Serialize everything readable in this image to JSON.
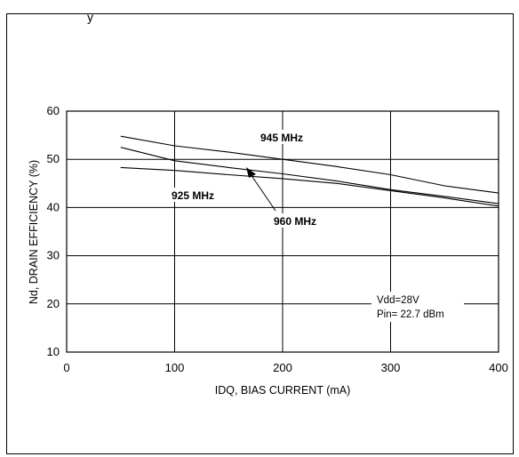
{
  "header": {
    "cropped_text": "y"
  },
  "chart_data": {
    "type": "line",
    "title": "",
    "xlabel": "IDQ, BIAS CURRENT (mA)",
    "ylabel": "Nd, DRAIN EFFICIENCY (%)",
    "xlim": [
      0,
      400
    ],
    "ylim": [
      10,
      60
    ],
    "xticks": [
      0,
      100,
      200,
      300,
      400
    ],
    "yticks": [
      10,
      20,
      30,
      40,
      50,
      60
    ],
    "grid": true,
    "series": [
      {
        "name": "945 MHz",
        "x": [
          50,
          100,
          150,
          200,
          250,
          300,
          350,
          400
        ],
        "y": [
          54.8,
          52.8,
          51.5,
          50.0,
          48.5,
          46.8,
          44.5,
          43.0
        ]
      },
      {
        "name": "960 MHz",
        "x": [
          50,
          100,
          150,
          200,
          250,
          300,
          350,
          400
        ],
        "y": [
          52.5,
          49.7,
          48.3,
          47.0,
          45.5,
          43.7,
          42.3,
          40.8
        ]
      },
      {
        "name": "925 MHz",
        "x": [
          50,
          100,
          150,
          200,
          250,
          300,
          350,
          400
        ],
        "y": [
          48.3,
          47.7,
          46.8,
          46.0,
          45.0,
          43.5,
          42.0,
          40.3
        ]
      }
    ],
    "annotations": [
      "Vdd=28V",
      "Pin= 22.7 dBm"
    ]
  }
}
